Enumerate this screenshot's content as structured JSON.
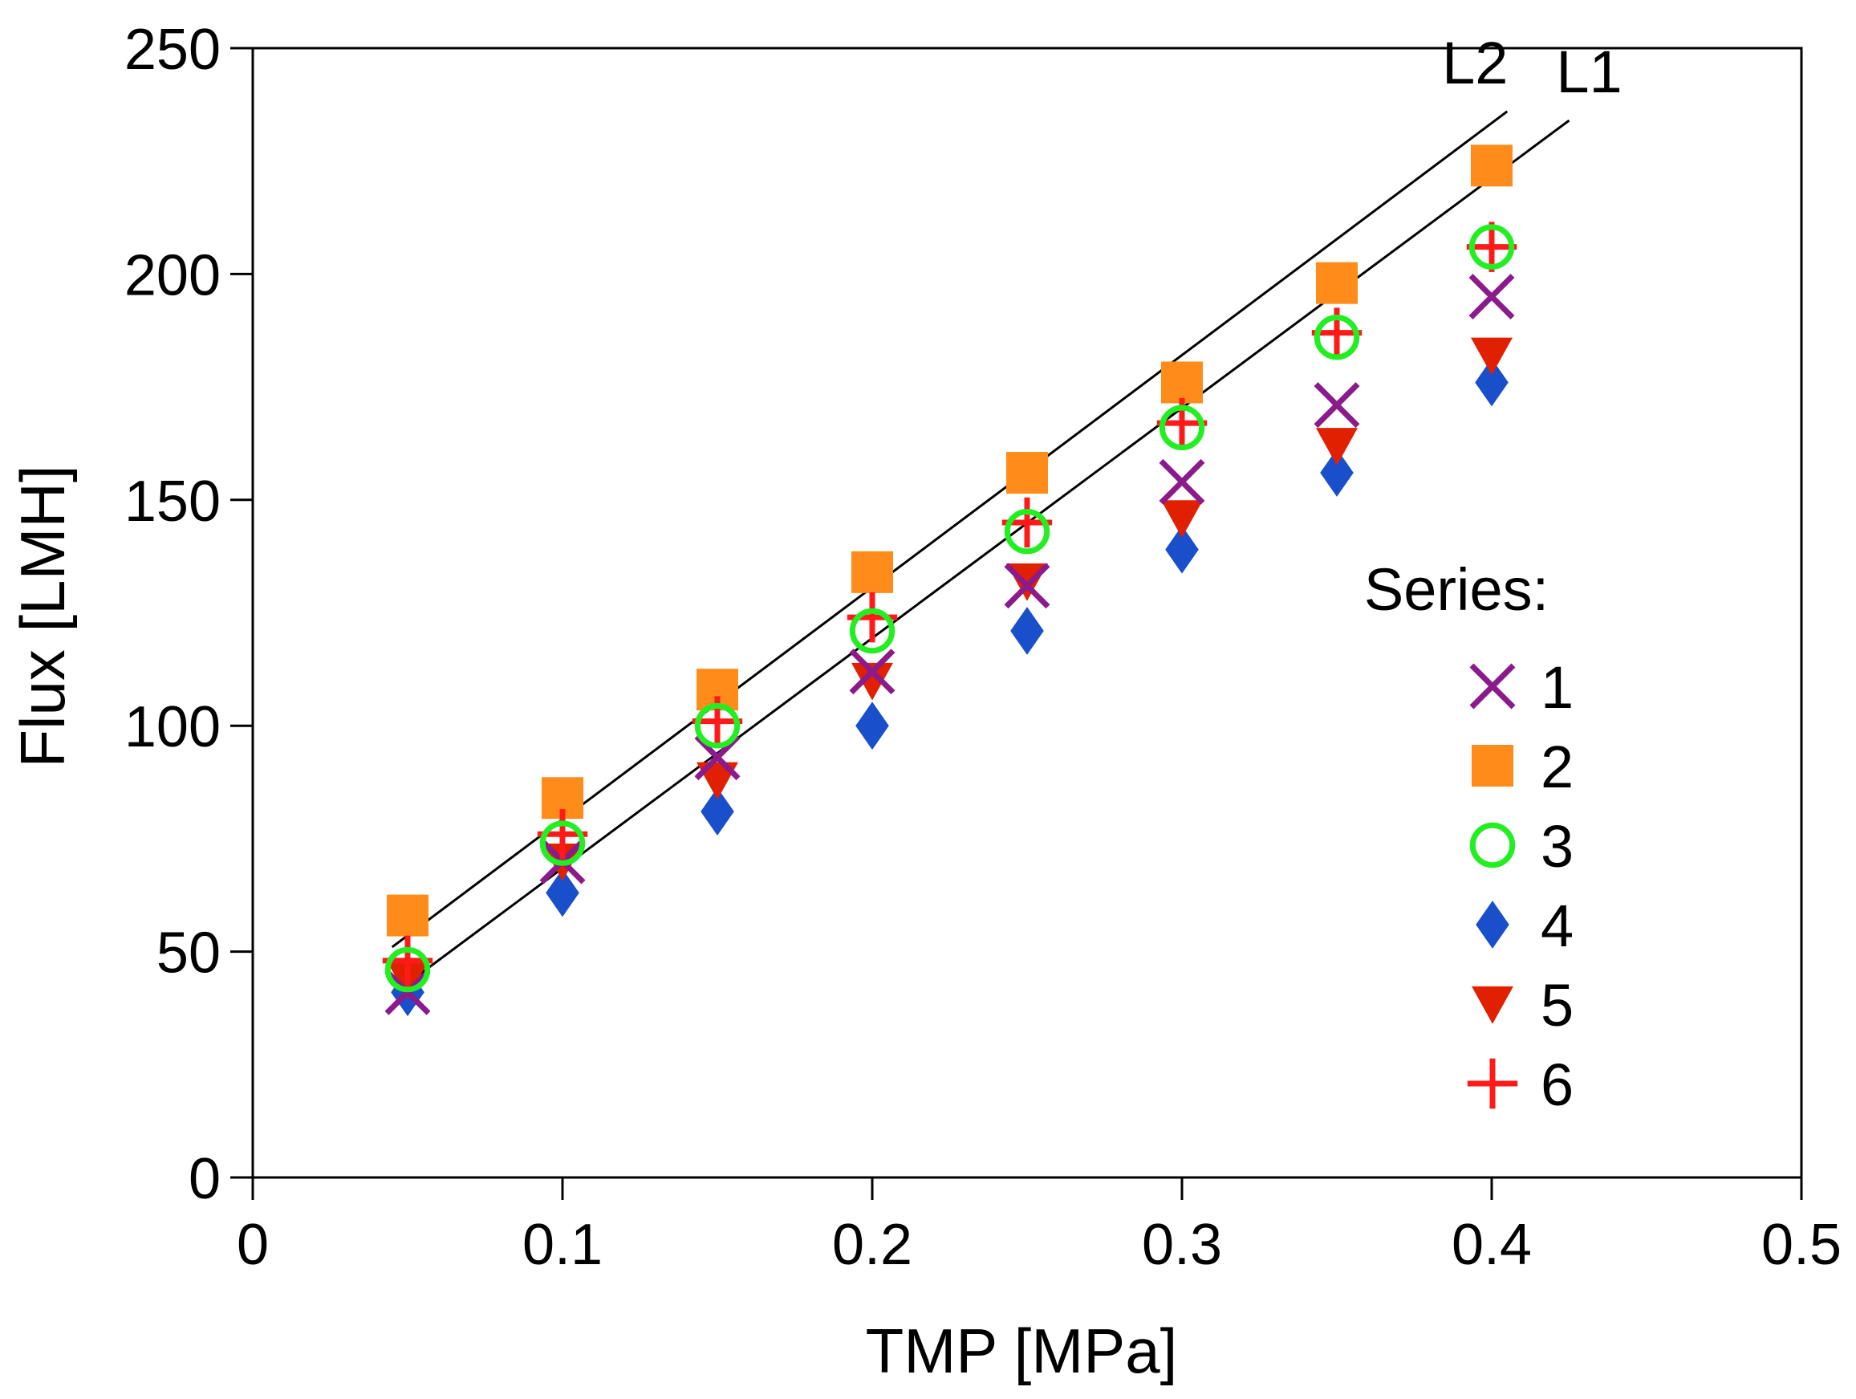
{
  "chart_data": {
    "type": "scatter",
    "title": "",
    "xlabel": "TMP [MPa]",
    "ylabel": "Flux [LMH]",
    "xlim": [
      0,
      0.5
    ],
    "ylim": [
      0,
      250
    ],
    "x_ticks": [
      0,
      0.1,
      0.2,
      0.3,
      0.4,
      0.5
    ],
    "y_ticks": [
      0,
      50,
      100,
      150,
      200,
      250
    ],
    "x_tick_labels": [
      "0",
      "0.1",
      "0.2",
      "0.3",
      "0.4",
      "0.5"
    ],
    "y_tick_labels": [
      "0",
      "50",
      "100",
      "150",
      "200",
      "250"
    ],
    "grid": false,
    "legend": {
      "title": "Series:",
      "placement": "right"
    },
    "series": [
      {
        "name": "1",
        "marker": "x",
        "color": "#8b1a8b",
        "x": [
          0.05,
          0.1,
          0.15,
          0.2,
          0.25,
          0.3,
          0.35,
          0.4
        ],
        "y": [
          41,
          70,
          93,
          112,
          131,
          154,
          171,
          195
        ]
      },
      {
        "name": "2",
        "marker": "square",
        "color": "#ff8c1a",
        "x": [
          0.05,
          0.1,
          0.15,
          0.2,
          0.25,
          0.3,
          0.35,
          0.4
        ],
        "y": [
          58,
          84,
          108,
          134,
          156,
          176,
          198,
          224
        ]
      },
      {
        "name": "3",
        "marker": "circle",
        "color": "#22ee22",
        "x": [
          0.05,
          0.1,
          0.15,
          0.2,
          0.25,
          0.3,
          0.35,
          0.4
        ],
        "y": [
          46,
          74,
          100,
          121,
          143,
          166,
          186,
          206
        ]
      },
      {
        "name": "4",
        "marker": "diamond",
        "color": "#1a4fcc",
        "x": [
          0.05,
          0.1,
          0.15,
          0.2,
          0.25,
          0.3,
          0.35,
          0.4
        ],
        "y": [
          41,
          63,
          81,
          100,
          121,
          139,
          156,
          176
        ]
      },
      {
        "name": "5",
        "marker": "triangle-down",
        "color": "#e02000",
        "x": [
          0.05,
          0.1,
          0.15,
          0.2,
          0.25,
          0.3,
          0.35,
          0.4
        ],
        "y": [
          44,
          70,
          88,
          110,
          132,
          146,
          162,
          182
        ]
      },
      {
        "name": "6",
        "marker": "plus",
        "color": "#ff1a1a",
        "x": [
          0.05,
          0.1,
          0.15,
          0.2,
          0.25,
          0.3,
          0.35,
          0.4
        ],
        "y": [
          48,
          76,
          101,
          124,
          145,
          167,
          187,
          206
        ]
      }
    ],
    "lines": [
      {
        "name": "L1",
        "x": [
          0.05,
          0.425
        ],
        "y": [
          43,
          234
        ]
      },
      {
        "name": "L2",
        "x": [
          0.045,
          0.405
        ],
        "y": [
          51,
          236
        ]
      }
    ]
  }
}
